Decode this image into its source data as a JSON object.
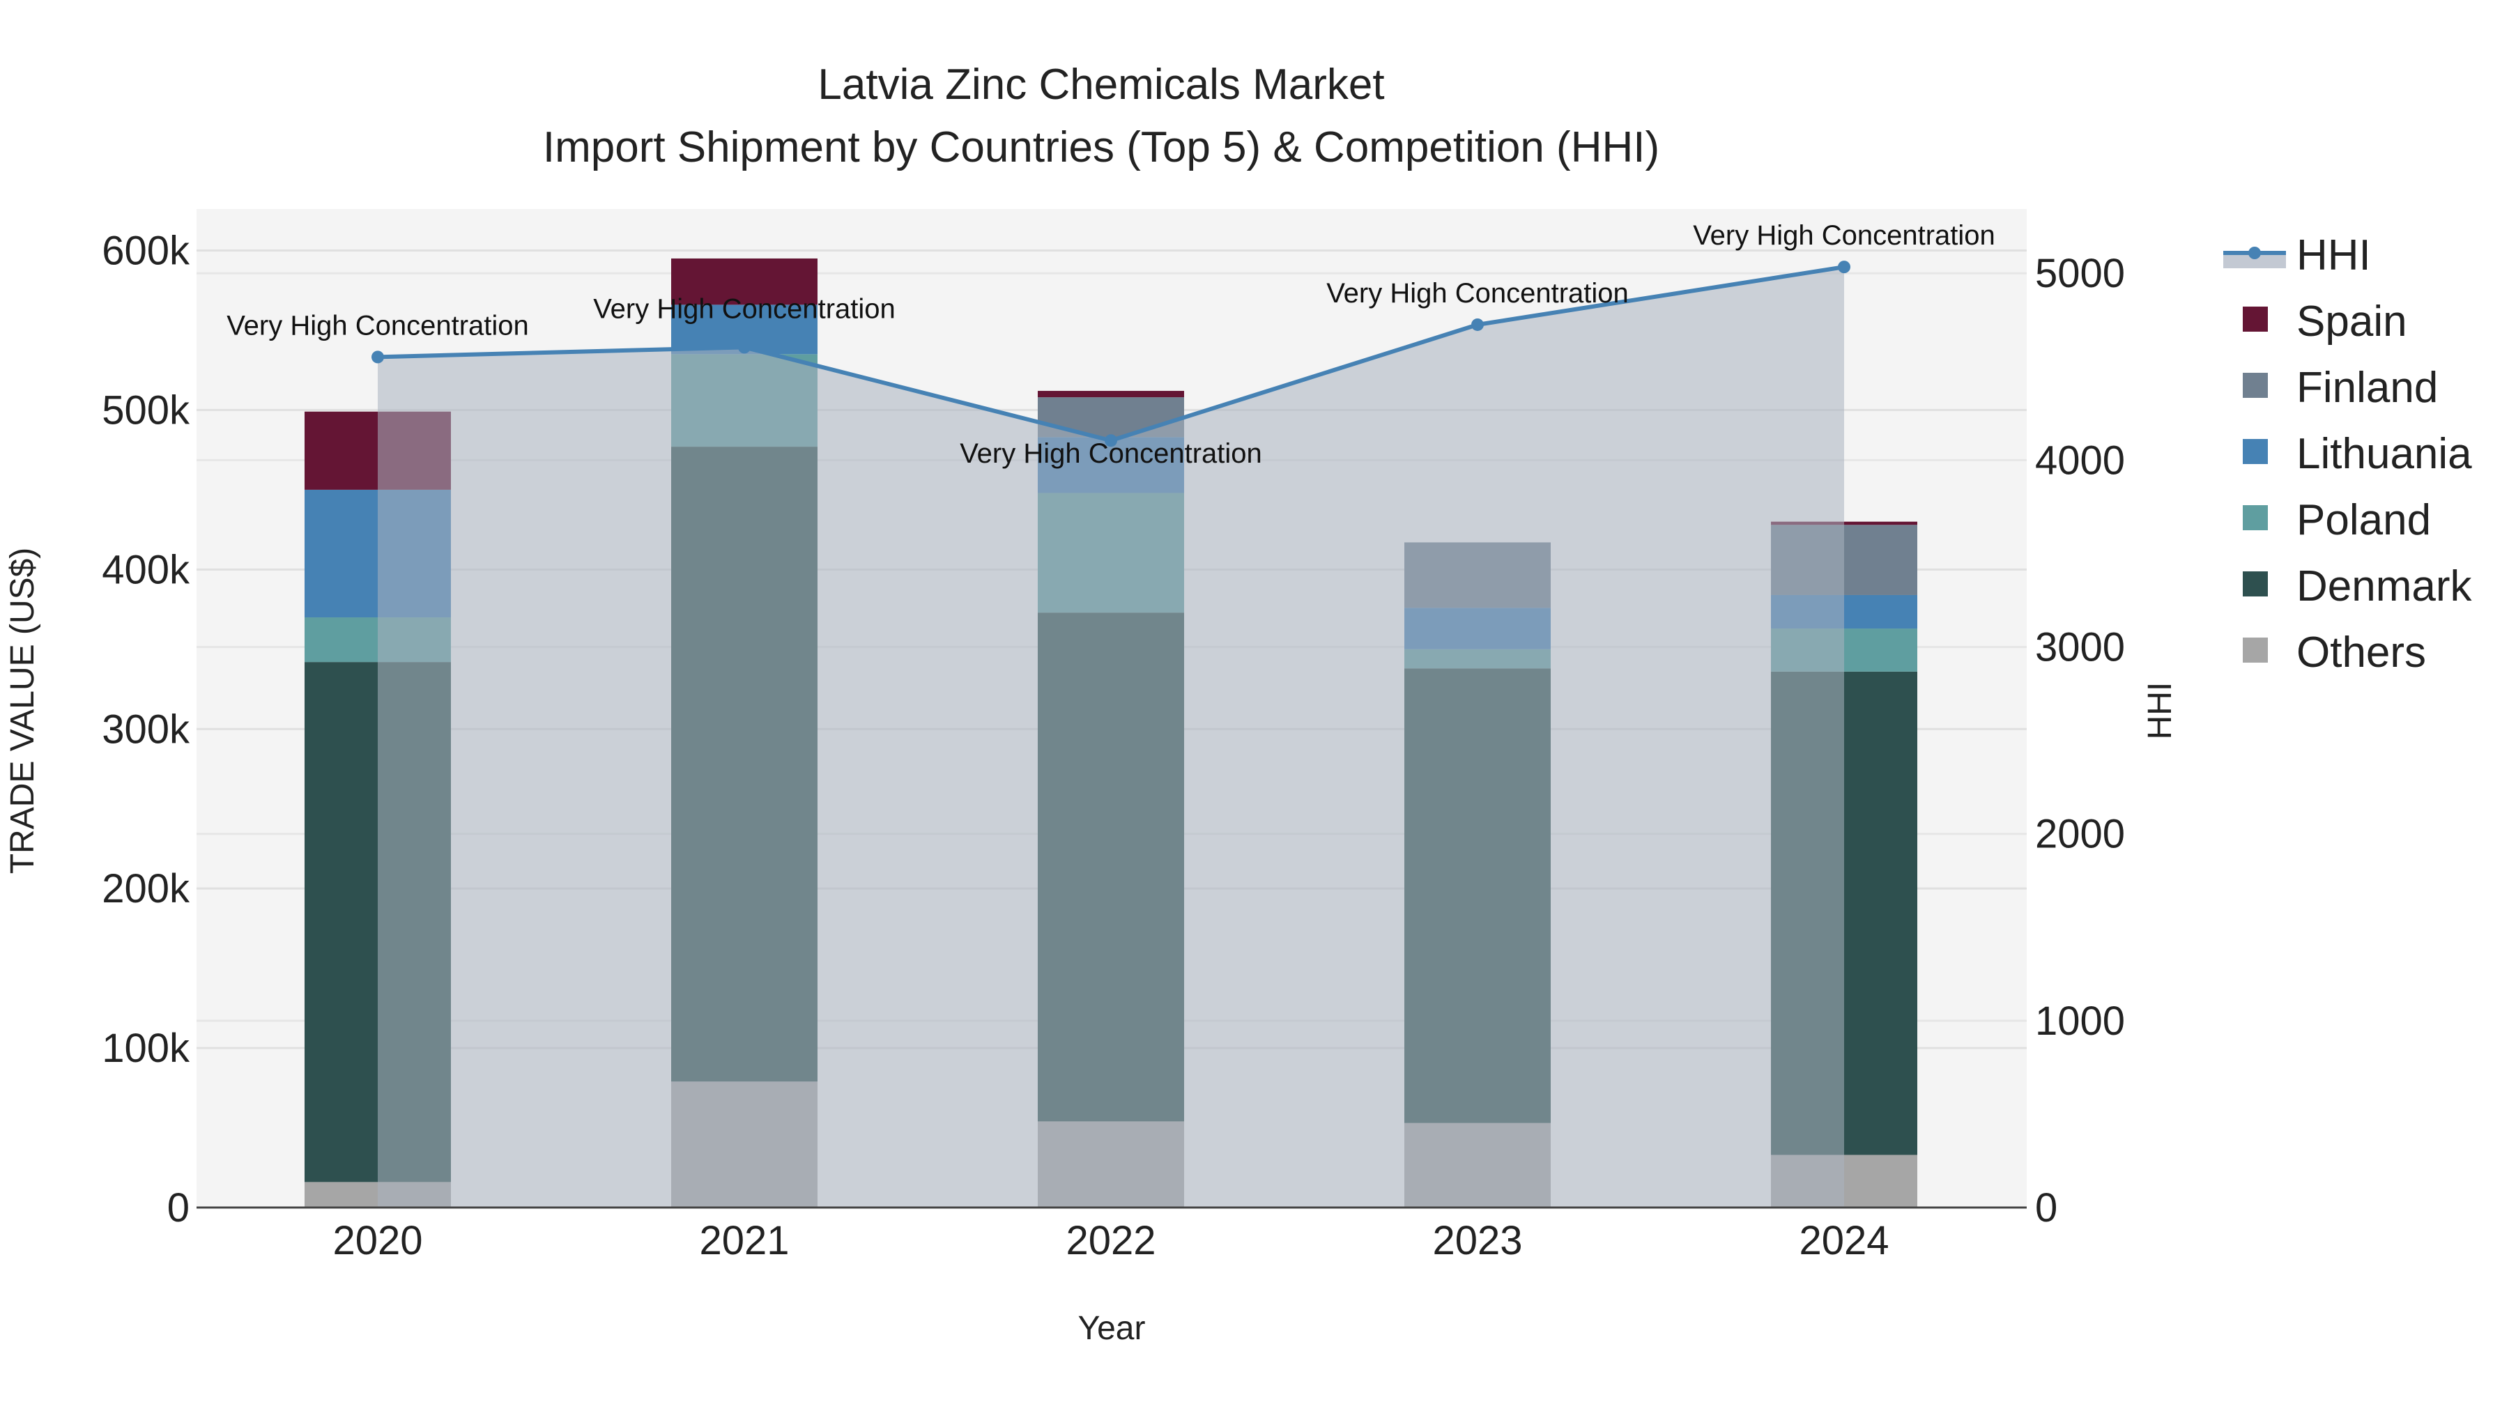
{
  "chart_data": {
    "type": "bar",
    "title": "Latvia Zinc Chemicals Market",
    "subtitle": "Import Shipment by Countries (Top 5) & Competition (HHI)",
    "xlabel": "Year",
    "ylabel": "TRADE VALUE (US$)",
    "y2label": "HHI",
    "categories": [
      "2020",
      "2021",
      "2022",
      "2023",
      "2024"
    ],
    "ylim": [
      0,
      626000
    ],
    "y2lim": [
      0,
      5344
    ],
    "yticks": [
      0,
      100000,
      200000,
      300000,
      400000,
      500000,
      600000
    ],
    "ytick_labels": [
      "0",
      "100k",
      "200k",
      "300k",
      "400k",
      "500k",
      "600k"
    ],
    "y2ticks": [
      0,
      1000,
      2000,
      3000,
      4000,
      5000
    ],
    "y2tick_labels": [
      "0",
      "1000",
      "2000",
      "3000",
      "4000",
      "5000"
    ],
    "stacked": true,
    "series": [
      {
        "name": "Others",
        "color": "#a6a6a6",
        "values": [
          16000,
          79000,
          54000,
          53000,
          33000
        ]
      },
      {
        "name": "Denmark",
        "color": "#2e504f",
        "values": [
          326000,
          398000,
          319000,
          285000,
          303000
        ]
      },
      {
        "name": "Poland",
        "color": "#5f9ea0",
        "values": [
          28000,
          58000,
          75000,
          12000,
          27000
        ]
      },
      {
        "name": "Lithuania",
        "color": "#4682b4",
        "values": [
          80000,
          31000,
          35000,
          26000,
          21000
        ]
      },
      {
        "name": "Finland",
        "color": "#708090",
        "values": [
          0,
          0,
          25000,
          41000,
          44000
        ]
      },
      {
        "name": "Spain",
        "color": "#641534",
        "values": [
          49000,
          29000,
          4000,
          0,
          2000
        ]
      }
    ],
    "hhi": {
      "name": "HHI",
      "color": "#4682b4",
      "values": [
        4552,
        4604,
        4105,
        4725,
        5034
      ],
      "annotations": [
        "Very High Concentration",
        "Very High Concentration",
        "Very High Concentration",
        "Very High Concentration",
        "Very High Concentration"
      ]
    },
    "legend": [
      "HHI",
      "Spain",
      "Finland",
      "Lithuania",
      "Poland",
      "Denmark",
      "Others"
    ],
    "legend_position": "right",
    "grid": true
  }
}
